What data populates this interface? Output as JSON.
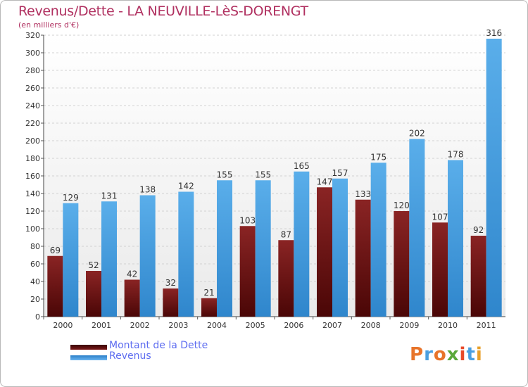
{
  "chart_data": {
    "type": "bar",
    "title": "Revenus/Dette - LA NEUVILLE-LèS-DORENGT",
    "subtitle": "(en milliers d'€)",
    "categories": [
      "2000",
      "2001",
      "2002",
      "2003",
      "2004",
      "2005",
      "2006",
      "2007",
      "2008",
      "2009",
      "2010",
      "2011"
    ],
    "series": [
      {
        "name": "Montant de la Dette",
        "color": "#7a1a1a",
        "values": [
          69,
          52,
          42,
          32,
          21,
          103,
          87,
          147,
          133,
          120,
          107,
          92
        ]
      },
      {
        "name": "Revenus",
        "color": "#4a9fe0",
        "values": [
          129,
          131,
          138,
          142,
          155,
          155,
          165,
          157,
          175,
          202,
          178,
          316
        ]
      }
    ],
    "ylim": [
      0,
      320
    ],
    "yticks": [
      0,
      20,
      40,
      60,
      80,
      100,
      120,
      140,
      160,
      180,
      200,
      220,
      240,
      260,
      280,
      300,
      320
    ],
    "grid": true,
    "legend_position": "bottom-left"
  },
  "legend": {
    "debt_label": "Montant de la Dette",
    "revenue_label": "Revenus"
  },
  "logo": {
    "text": "Proxiti",
    "letters": [
      "P",
      "r",
      "o",
      "x",
      "i",
      "t",
      "i"
    ],
    "colors": [
      "#e8742a",
      "#4a9fe0",
      "#e8742a",
      "#5aa83a",
      "#e84a2a",
      "#4a9fe0",
      "#e8a02a"
    ]
  }
}
